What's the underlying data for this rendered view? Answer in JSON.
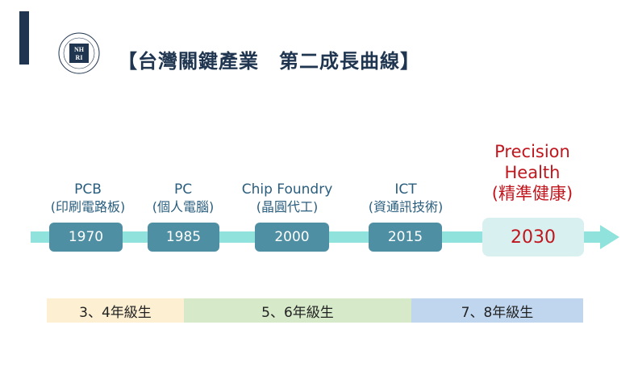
{
  "title": "【台灣關鍵產業　第二成長曲線】",
  "logo": {
    "letters": "NHRI",
    "ring_text": "NATIONAL HEALTH RESEARCH INSTITUTES"
  },
  "milestones": [
    {
      "name": "PCB",
      "sub": "(印刷電路板)",
      "year": "1970"
    },
    {
      "name": "PC",
      "sub": "(個人電腦)",
      "year": "1985"
    },
    {
      "name": "Chip Foundry",
      "sub": "(晶圓代工)",
      "year": "2000"
    },
    {
      "name": "ICT",
      "sub": "(資通訊技術)",
      "year": "2015"
    }
  ],
  "future": {
    "line1": "Precision",
    "line2": "Health",
    "line3": "(精準健康)",
    "year": "2030"
  },
  "generations": [
    {
      "label": "3、4年級生",
      "color": "#fdf0d2"
    },
    {
      "label": "5、6年級生",
      "color": "#d6e9c9"
    },
    {
      "label": "7、8年級生",
      "color": "#bfd6ee"
    }
  ],
  "colors": {
    "accent": "#c0161e",
    "navy": "#1f3550",
    "teal_box": "#4f8fa3",
    "arrow": "#8fe3dc"
  }
}
